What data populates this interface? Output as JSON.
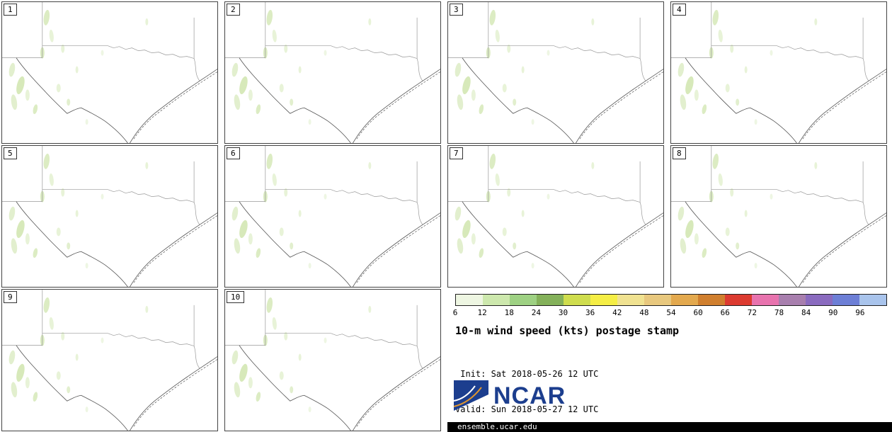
{
  "panels": [
    {
      "label": "1"
    },
    {
      "label": "2"
    },
    {
      "label": "3"
    },
    {
      "label": "4"
    },
    {
      "label": "5"
    },
    {
      "label": "6"
    },
    {
      "label": "7"
    },
    {
      "label": "8"
    },
    {
      "label": "9"
    },
    {
      "label": "10"
    }
  ],
  "colorbar": {
    "ticks": [
      "6",
      "12",
      "18",
      "24",
      "30",
      "36",
      "42",
      "48",
      "54",
      "60",
      "66",
      "72",
      "78",
      "84",
      "90",
      "96"
    ],
    "colors": [
      "#eef6e2",
      "#cde8ad",
      "#9ed183",
      "#84b15a",
      "#cfdd4e",
      "#f5ee45",
      "#f0e291",
      "#e8c87e",
      "#e3a94e",
      "#d07f2e",
      "#dc3b30",
      "#e873ae",
      "#a87fae",
      "#8a6bbf",
      "#6d7fd6",
      "#a9c4ec"
    ]
  },
  "legend": {
    "title": "10-m wind speed (kts) postage stamp",
    "init": " Init: Sat 2018-05-26 12 UTC",
    "valid": "Valid: Sun 2018-05-27 12 UTC"
  },
  "branding": {
    "logo": "NCAR",
    "footer": "ensemble.ucar.edu"
  },
  "chart_data": {
    "type": "heatmap",
    "title": "10-m wind speed (kts) postage stamp",
    "subtitle_lines": [
      "Init: Sat 2018-05-26 12 UTC",
      "Valid: Sun 2018-05-27 12 UTC"
    ],
    "panel_labels": [
      "1",
      "2",
      "3",
      "4",
      "5",
      "6",
      "7",
      "8",
      "9",
      "10"
    ],
    "layout": "10 postage-stamp map panels in 4-column grid (ensemble members), shared colorbar legend at bottom right",
    "colorbar": {
      "unit": "kts",
      "tick_values": [
        6,
        12,
        18,
        24,
        30,
        36,
        42,
        48,
        54,
        60,
        66,
        72,
        78,
        84,
        90,
        96
      ],
      "colors": [
        "#eef6e2",
        "#cde8ad",
        "#9ed183",
        "#84b15a",
        "#cfdd4e",
        "#f5ee45",
        "#f0e291",
        "#e8c87e",
        "#e3a94e",
        "#d07f2e",
        "#dc3b30",
        "#e873ae",
        "#a87fae",
        "#8a6bbf",
        "#6d7fd6",
        "#a9c4ec"
      ]
    },
    "depicted_values": "All members show wind speeds mostly below 6 kts (white) with scattered 6-12 kt pale-green patches over the western portion of the Texas/New Mexico domain"
  }
}
